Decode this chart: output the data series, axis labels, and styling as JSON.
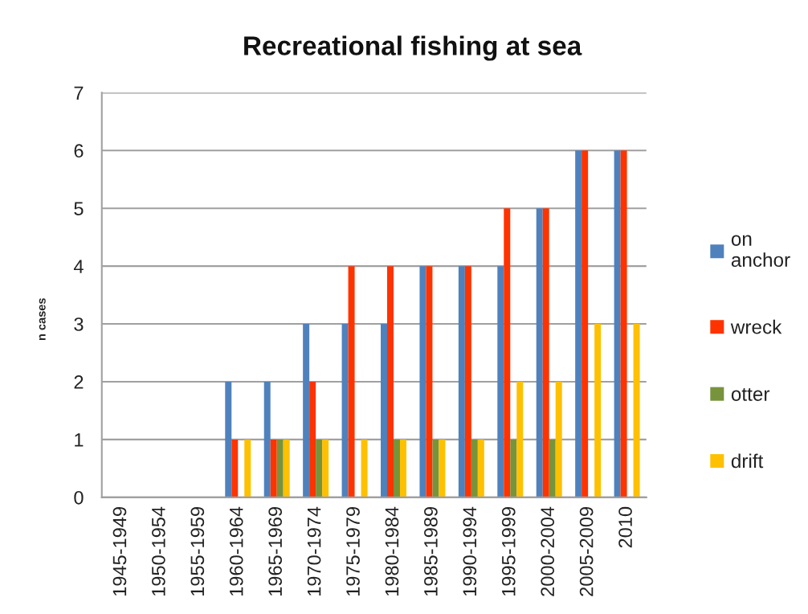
{
  "chart_data": {
    "type": "bar",
    "title": "Recreational fishing at sea",
    "ylabel": "n cases",
    "categories": [
      "1945-1949",
      "1950-1954",
      "1955-1959",
      "1960-1964",
      "1965-1969",
      "1970-1974",
      "1975-1979",
      "1980-1984",
      "1985-1989",
      "1990-1994",
      "1995-1999",
      "2000-2004",
      "2005-2009",
      "2010"
    ],
    "series": [
      {
        "name": "on anchor",
        "color": "#4f81bd",
        "values": [
          0,
          0,
          0,
          2,
          2,
          3,
          3,
          3,
          4,
          4,
          4,
          5,
          6,
          6
        ]
      },
      {
        "name": "wreck",
        "color": "#ff3300",
        "values": [
          0,
          0,
          0,
          1,
          1,
          2,
          4,
          4,
          4,
          4,
          5,
          5,
          6,
          6
        ]
      },
      {
        "name": "otter",
        "color": "#77933c",
        "values": [
          0,
          0,
          0,
          0,
          1,
          1,
          0,
          1,
          1,
          1,
          1,
          1,
          0,
          0
        ]
      },
      {
        "name": "drift",
        "color": "#ffc000",
        "values": [
          0,
          0,
          0,
          1,
          1,
          1,
          1,
          1,
          1,
          1,
          2,
          2,
          3,
          3
        ]
      }
    ],
    "ylim": [
      0,
      7
    ],
    "yticks": [
      0,
      1,
      2,
      3,
      4,
      5,
      6,
      7
    ],
    "grid": "y",
    "legend": "right"
  }
}
